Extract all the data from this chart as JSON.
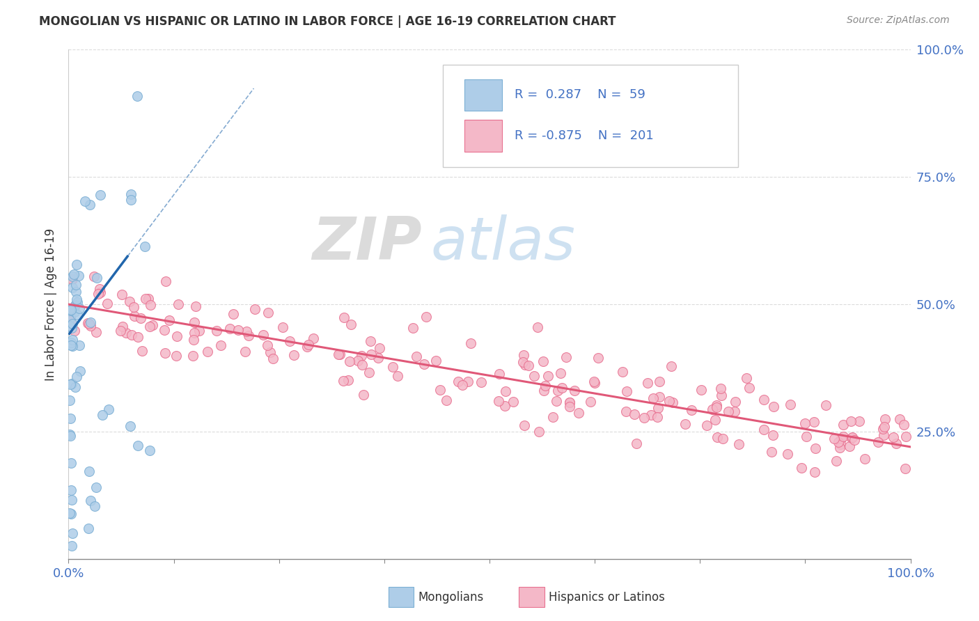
{
  "title": "MONGOLIAN VS HISPANIC OR LATINO IN LABOR FORCE | AGE 16-19 CORRELATION CHART",
  "source": "Source: ZipAtlas.com",
  "ylabel": "In Labor Force | Age 16-19",
  "xmin": 0.0,
  "xmax": 1.0,
  "ymin": 0.0,
  "ymax": 1.0,
  "grid_color": "#cccccc",
  "background_color": "#ffffff",
  "mongolian_color": "#aecde8",
  "mongolian_edge_color": "#7bafd4",
  "hispanic_color": "#f4b8c8",
  "hispanic_edge_color": "#e87090",
  "mongolian_R": 0.287,
  "mongolian_N": 59,
  "hispanic_R": -0.875,
  "hispanic_N": 201,
  "trend_color_mongolian": "#2166ac",
  "trend_color_hispanic": "#e05878",
  "legend_label_mongolian": "Mongolians",
  "legend_label_hispanic": "Hispanics or Latinos",
  "watermark_zip": "ZIP",
  "watermark_atlas": "atlas"
}
